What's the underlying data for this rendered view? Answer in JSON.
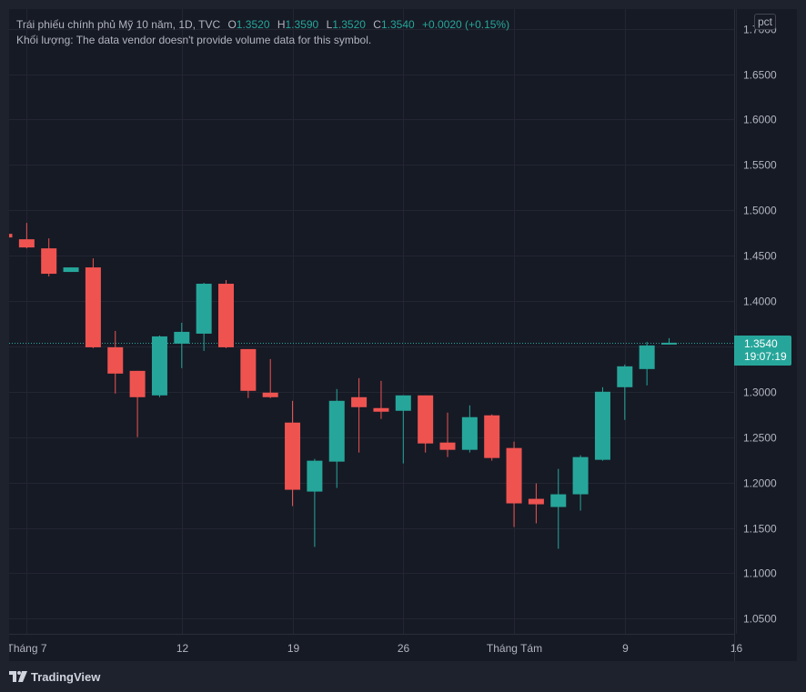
{
  "header": {
    "symbol_title": "Trái phiếu chính phủ Mỹ 10 năm, 1D, TVC",
    "ohlc": [
      {
        "key": "O",
        "value": "1.3520"
      },
      {
        "key": "H",
        "value": "1.3590"
      },
      {
        "key": "L",
        "value": "1.3520"
      },
      {
        "key": "C",
        "value": "1.3540"
      }
    ],
    "change": "+0.0020 (+0.15%)",
    "volume_line": "Khối lượng: The data vendor doesn't provide volume data for this symbol."
  },
  "scale_button": "pct",
  "last_price": {
    "value": "1.3540",
    "countdown": "19:07:19"
  },
  "branding": {
    "name": "TradingView"
  },
  "colors": {
    "background": "#161a25",
    "page": "#1e222d",
    "up": "#26a69a",
    "down": "#ef5350",
    "grid": "#232632",
    "text": "#b2b5be"
  },
  "chart_data": {
    "type": "candlestick",
    "timeframe": "1D",
    "y_ticks": [
      "1.0500",
      "1.1000",
      "1.1500",
      "1.2000",
      "1.2500",
      "1.3000",
      "1.3500",
      "1.4000",
      "1.4500",
      "1.5000",
      "1.5500",
      "1.6000",
      "1.6500",
      "1.7000"
    ],
    "ylim": [
      1.0,
      1.74
    ],
    "x_ticks": [
      {
        "label": "Tháng 7",
        "index": 1
      },
      {
        "label": "12",
        "index": 8
      },
      {
        "label": "19",
        "index": 13
      },
      {
        "label": "26",
        "index": 18
      },
      {
        "label": "Tháng Tám",
        "index": 23
      },
      {
        "label": "9",
        "index": 28
      },
      {
        "label": "16",
        "index": 33
      }
    ],
    "grid": true,
    "candles": [
      {
        "o": 1.474,
        "h": 1.476,
        "l": 1.47,
        "c": 1.47
      },
      {
        "o": 1.468,
        "h": 1.486,
        "l": 1.458,
        "c": 1.459
      },
      {
        "o": 1.458,
        "h": 1.469,
        "l": 1.427,
        "c": 1.43
      },
      {
        "o": 1.432,
        "h": 1.437,
        "l": 1.432,
        "c": 1.437
      },
      {
        "o": 1.437,
        "h": 1.447,
        "l": 1.348,
        "c": 1.349
      },
      {
        "o": 1.349,
        "h": 1.367,
        "l": 1.298,
        "c": 1.32
      },
      {
        "o": 1.323,
        "h": 1.323,
        "l": 1.25,
        "c": 1.294
      },
      {
        "o": 1.296,
        "h": 1.362,
        "l": 1.294,
        "c": 1.361
      },
      {
        "o": 1.353,
        "h": 1.376,
        "l": 1.326,
        "c": 1.366
      },
      {
        "o": 1.364,
        "h": 1.42,
        "l": 1.345,
        "c": 1.419
      },
      {
        "o": 1.419,
        "h": 1.423,
        "l": 1.348,
        "c": 1.349
      },
      {
        "o": 1.347,
        "h": 1.347,
        "l": 1.293,
        "c": 1.301
      },
      {
        "o": 1.299,
        "h": 1.336,
        "l": 1.293,
        "c": 1.294
      },
      {
        "o": 1.266,
        "h": 1.29,
        "l": 1.174,
        "c": 1.192
      },
      {
        "o": 1.19,
        "h": 1.226,
        "l": 1.129,
        "c": 1.224
      },
      {
        "o": 1.223,
        "h": 1.303,
        "l": 1.194,
        "c": 1.29
      },
      {
        "o": 1.294,
        "h": 1.315,
        "l": 1.233,
        "c": 1.283
      },
      {
        "o": 1.282,
        "h": 1.312,
        "l": 1.27,
        "c": 1.278
      },
      {
        "o": 1.279,
        "h": 1.296,
        "l": 1.221,
        "c": 1.296
      },
      {
        "o": 1.296,
        "h": 1.296,
        "l": 1.233,
        "c": 1.243
      },
      {
        "o": 1.244,
        "h": 1.277,
        "l": 1.228,
        "c": 1.236
      },
      {
        "o": 1.236,
        "h": 1.285,
        "l": 1.233,
        "c": 1.272
      },
      {
        "o": 1.274,
        "h": 1.275,
        "l": 1.224,
        "c": 1.227
      },
      {
        "o": 1.238,
        "h": 1.245,
        "l": 1.151,
        "c": 1.177
      },
      {
        "o": 1.182,
        "h": 1.199,
        "l": 1.155,
        "c": 1.176
      },
      {
        "o": 1.173,
        "h": 1.215,
        "l": 1.127,
        "c": 1.187
      },
      {
        "o": 1.187,
        "h": 1.23,
        "l": 1.169,
        "c": 1.228
      },
      {
        "o": 1.225,
        "h": 1.305,
        "l": 1.224,
        "c": 1.3
      },
      {
        "o": 1.305,
        "h": 1.33,
        "l": 1.269,
        "c": 1.328
      },
      {
        "o": 1.325,
        "h": 1.355,
        "l": 1.307,
        "c": 1.351
      },
      {
        "o": 1.352,
        "h": 1.359,
        "l": 1.352,
        "c": 1.354
      }
    ]
  }
}
